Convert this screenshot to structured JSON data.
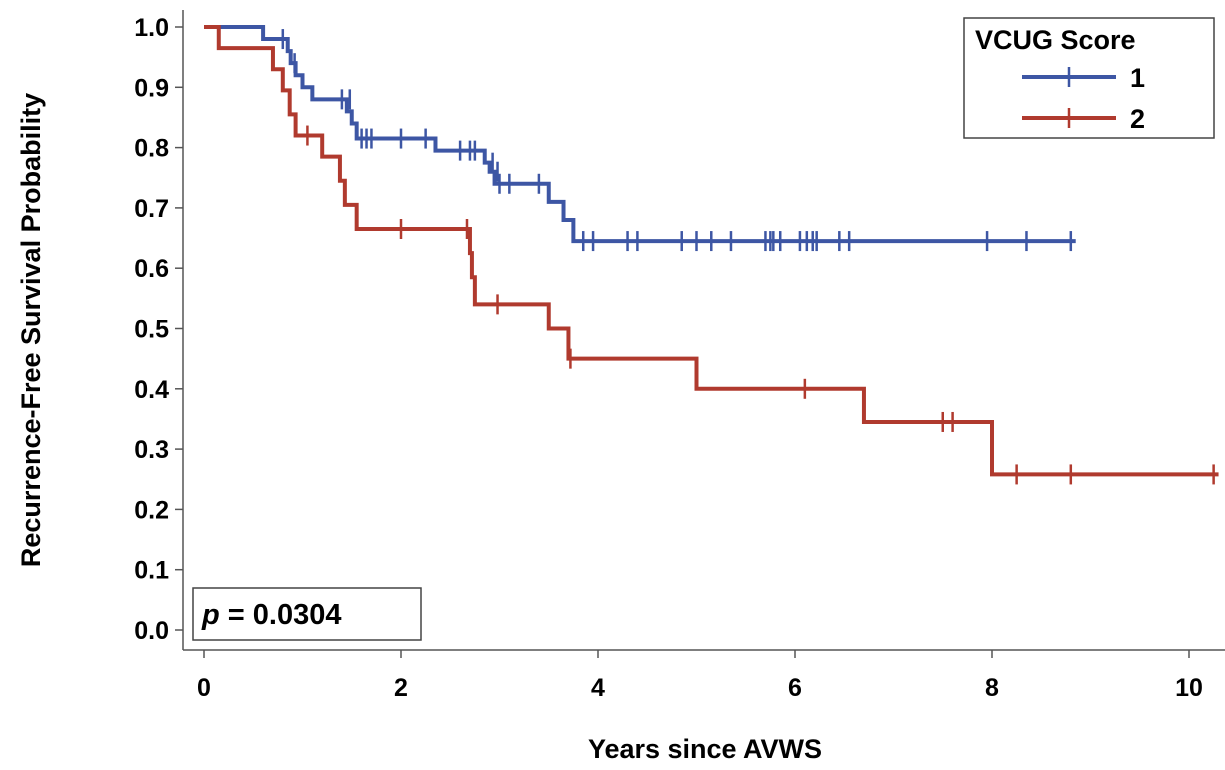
{
  "chart_data": {
    "type": "line",
    "xlabel": "Years since AVWS",
    "ylabel": "Recurrence-Free Survival Probability",
    "xlim": [
      0,
      10.3
    ],
    "ylim": [
      0,
      1
    ],
    "xticks": [
      0,
      2,
      4,
      6,
      8,
      10
    ],
    "xtick_labels": [
      "0",
      "2",
      "4",
      "6",
      "8",
      "10"
    ],
    "yticks": [
      0,
      0.1,
      0.2,
      0.3,
      0.4,
      0.5,
      0.6,
      0.7,
      0.8,
      0.9,
      1.0
    ],
    "ytick_labels": [
      "0.0",
      "0.1",
      "0.2",
      "0.3",
      "0.4",
      "0.5",
      "0.6",
      "0.7",
      "0.8",
      "0.9",
      "1.0"
    ],
    "grid": false,
    "legend": {
      "title": "VCUG Score",
      "position": "top-right"
    },
    "annotation": {
      "prefix": "p",
      "text": " = 0.0304",
      "position": "bottom-left"
    },
    "series": [
      {
        "name": "1",
        "color": "#3d56a4",
        "steps": [
          [
            0,
            1.0
          ],
          [
            0.6,
            0.98
          ],
          [
            0.85,
            0.96
          ],
          [
            0.88,
            0.94
          ],
          [
            0.93,
            0.92
          ],
          [
            1.0,
            0.9
          ],
          [
            1.1,
            0.88
          ],
          [
            1.45,
            0.86
          ],
          [
            1.5,
            0.84
          ],
          [
            1.55,
            0.815
          ],
          [
            2.35,
            0.795
          ],
          [
            2.85,
            0.775
          ],
          [
            2.9,
            0.76
          ],
          [
            2.95,
            0.74
          ],
          [
            3.5,
            0.71
          ],
          [
            3.65,
            0.68
          ],
          [
            3.75,
            0.645
          ]
        ],
        "end": 8.85,
        "censored": [
          [
            0.8,
            0.98
          ],
          [
            0.92,
            0.94
          ],
          [
            1.4,
            0.88
          ],
          [
            1.48,
            0.88
          ],
          [
            1.6,
            0.815
          ],
          [
            1.65,
            0.815
          ],
          [
            1.7,
            0.815
          ],
          [
            2.0,
            0.815
          ],
          [
            2.25,
            0.815
          ],
          [
            2.6,
            0.795
          ],
          [
            2.7,
            0.795
          ],
          [
            2.75,
            0.795
          ],
          [
            2.93,
            0.775
          ],
          [
            2.98,
            0.76
          ],
          [
            3.0,
            0.74
          ],
          [
            3.1,
            0.74
          ],
          [
            3.4,
            0.74
          ],
          [
            3.85,
            0.645
          ],
          [
            3.95,
            0.645
          ],
          [
            4.3,
            0.645
          ],
          [
            4.4,
            0.645
          ],
          [
            4.85,
            0.645
          ],
          [
            5.0,
            0.645
          ],
          [
            5.15,
            0.645
          ],
          [
            5.35,
            0.645
          ],
          [
            5.7,
            0.645
          ],
          [
            5.75,
            0.645
          ],
          [
            5.78,
            0.645
          ],
          [
            5.85,
            0.645
          ],
          [
            6.05,
            0.645
          ],
          [
            6.12,
            0.645
          ],
          [
            6.18,
            0.645
          ],
          [
            6.22,
            0.645
          ],
          [
            6.45,
            0.645
          ],
          [
            6.55,
            0.645
          ],
          [
            7.95,
            0.645
          ],
          [
            8.35,
            0.645
          ],
          [
            8.8,
            0.645
          ]
        ]
      },
      {
        "name": "2",
        "color": "#b03a2e",
        "steps": [
          [
            0,
            1.0
          ],
          [
            0.15,
            0.965
          ],
          [
            0.7,
            0.93
          ],
          [
            0.8,
            0.895
          ],
          [
            0.87,
            0.855
          ],
          [
            0.93,
            0.82
          ],
          [
            1.2,
            0.785
          ],
          [
            1.38,
            0.745
          ],
          [
            1.43,
            0.705
          ],
          [
            1.55,
            0.665
          ],
          [
            2.7,
            0.625
          ],
          [
            2.72,
            0.585
          ],
          [
            2.75,
            0.54
          ],
          [
            3.5,
            0.5
          ],
          [
            3.7,
            0.45
          ],
          [
            5.0,
            0.4
          ],
          [
            6.7,
            0.345
          ],
          [
            8.0,
            0.258
          ]
        ],
        "end": 10.3,
        "censored": [
          [
            1.05,
            0.82
          ],
          [
            2.0,
            0.665
          ],
          [
            2.67,
            0.665
          ],
          [
            2.98,
            0.54
          ],
          [
            3.72,
            0.45
          ],
          [
            6.1,
            0.4
          ],
          [
            7.5,
            0.345
          ],
          [
            7.6,
            0.345
          ],
          [
            8.25,
            0.258
          ],
          [
            8.8,
            0.258
          ],
          [
            10.25,
            0.258
          ]
        ]
      }
    ]
  }
}
